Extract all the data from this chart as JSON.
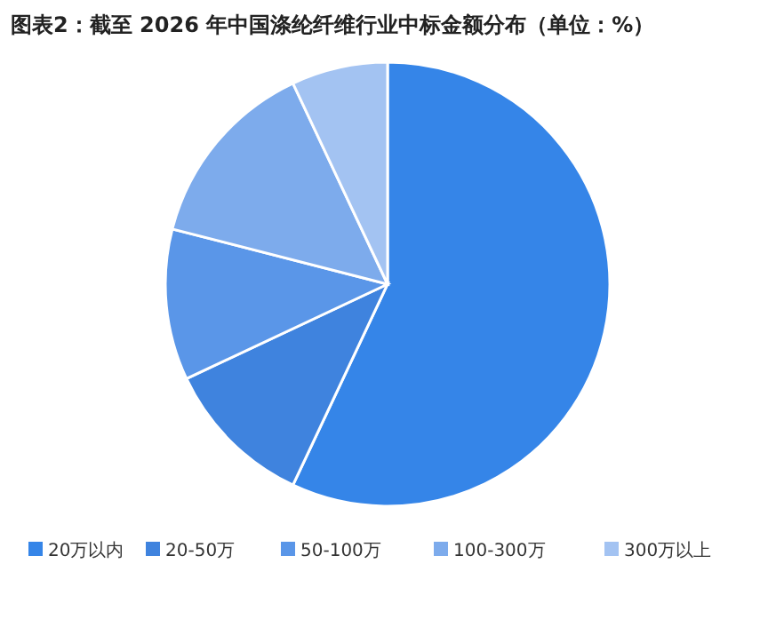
{
  "chart_data": {
    "type": "pie",
    "title": "图表2：截至 2026 年中国涤纶纤维行业中标金额分布（单位：%）",
    "categories": [
      "20万以内",
      "20-50万",
      "50-100万",
      "100-300万",
      "300万以上"
    ],
    "values": [
      57,
      11,
      11,
      14,
      7
    ],
    "colors": [
      "#3585e8",
      "#3f83de",
      "#5a96e8",
      "#7dabec",
      "#a3c3f2"
    ],
    "legend": "bottom"
  }
}
